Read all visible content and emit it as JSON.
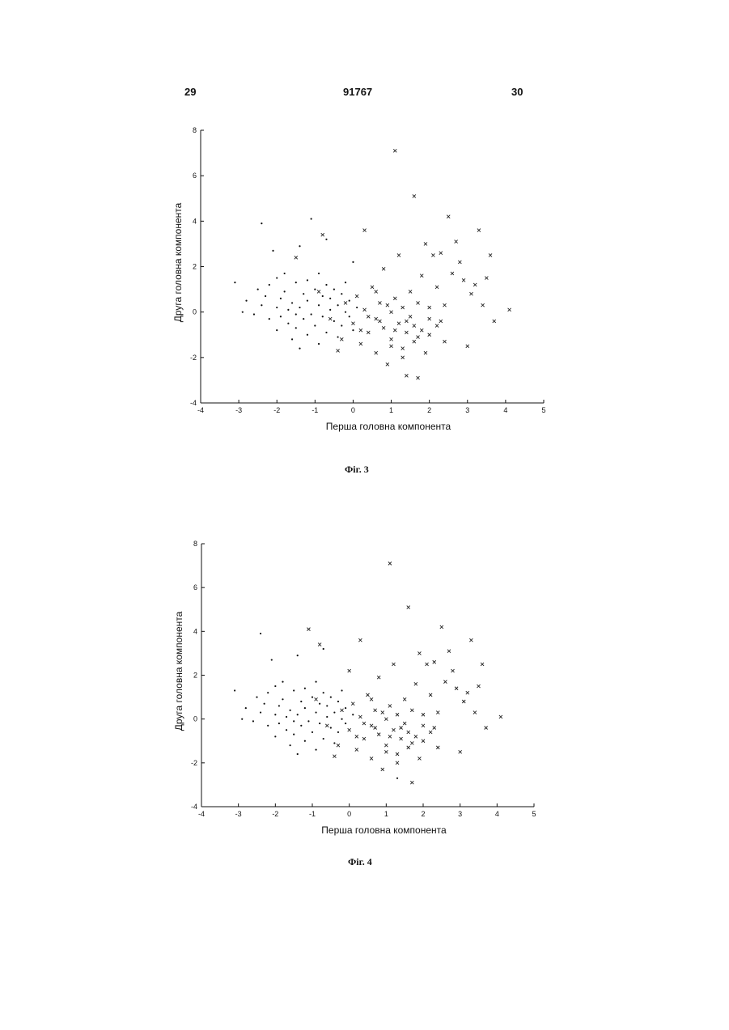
{
  "header": {
    "page_left": "29",
    "patent_number": "91767",
    "page_right": "30"
  },
  "chart_data": [
    {
      "type": "scatter",
      "caption": "Фіг. 3",
      "xlabel": "Перша головна компонента",
      "ylabel": "Друга головна компонента",
      "xlim": [
        -4,
        5
      ],
      "ylim": [
        -4,
        8
      ],
      "x_ticks": [
        -4,
        -3,
        -2,
        -1,
        0,
        1,
        2,
        3,
        4,
        5
      ],
      "y_ticks": [
        -4,
        -2,
        0,
        2,
        4,
        6,
        8
      ],
      "grid": false,
      "series": [
        {
          "marker": "dot",
          "points": [
            [
              -3.1,
              1.3
            ],
            [
              -2.9,
              0.0
            ],
            [
              -2.8,
              0.5
            ],
            [
              -2.6,
              -0.1
            ],
            [
              -2.5,
              1.0
            ],
            [
              -2.4,
              3.9
            ],
            [
              -2.4,
              0.3
            ],
            [
              -2.3,
              0.7
            ],
            [
              -2.2,
              -0.3
            ],
            [
              -2.2,
              1.2
            ],
            [
              -2.1,
              2.7
            ],
            [
              -2.0,
              0.2
            ],
            [
              -2.0,
              -0.8
            ],
            [
              -1.9,
              0.6
            ],
            [
              -1.9,
              -0.2
            ],
            [
              -1.8,
              1.7
            ],
            [
              -1.8,
              0.9
            ],
            [
              -1.7,
              -0.5
            ],
            [
              -1.7,
              0.1
            ],
            [
              -1.6,
              0.4
            ],
            [
              -1.6,
              -1.2
            ],
            [
              -1.5,
              1.3
            ],
            [
              -1.5,
              -0.7
            ],
            [
              -1.4,
              2.9
            ],
            [
              -1.4,
              0.2
            ],
            [
              -1.4,
              -1.6
            ],
            [
              -1.3,
              0.8
            ],
            [
              -1.3,
              -0.3
            ],
            [
              -1.2,
              1.4
            ],
            [
              -1.2,
              0.5
            ],
            [
              -1.2,
              -1.0
            ],
            [
              -1.1,
              4.1
            ],
            [
              -1.1,
              -0.1
            ],
            [
              -1.0,
              1.0
            ],
            [
              -1.0,
              -0.6
            ],
            [
              -0.9,
              0.3
            ],
            [
              -0.9,
              1.7
            ],
            [
              -0.9,
              -1.4
            ],
            [
              -0.8,
              0.7
            ],
            [
              -0.8,
              -0.2
            ],
            [
              -0.7,
              3.2
            ],
            [
              -0.7,
              1.2
            ],
            [
              -0.7,
              -0.9
            ],
            [
              -0.6,
              0.1
            ],
            [
              -0.6,
              0.6
            ],
            [
              -0.5,
              -0.4
            ],
            [
              -0.5,
              1.0
            ],
            [
              -0.4,
              -1.1
            ],
            [
              -0.4,
              0.3
            ],
            [
              -0.3,
              0.8
            ],
            [
              -0.3,
              -0.6
            ],
            [
              -0.2,
              0.0
            ],
            [
              -0.2,
              1.3
            ],
            [
              -0.1,
              -0.2
            ],
            [
              -0.1,
              0.5
            ],
            [
              0.0,
              2.2
            ],
            [
              0.0,
              -0.8
            ],
            [
              0.1,
              0.2
            ],
            [
              -1.5,
              -0.1
            ],
            [
              -2.0,
              1.5
            ]
          ]
        },
        {
          "marker": "cross",
          "points": [
            [
              -0.8,
              3.4
            ],
            [
              -1.5,
              2.4
            ],
            [
              -0.9,
              0.9
            ],
            [
              -0.6,
              -0.3
            ],
            [
              -0.4,
              -1.7
            ],
            [
              -0.2,
              0.4
            ],
            [
              0.0,
              -0.5
            ],
            [
              0.1,
              0.7
            ],
            [
              0.2,
              -1.4
            ],
            [
              0.3,
              3.6
            ],
            [
              0.3,
              0.1
            ],
            [
              0.4,
              -0.9
            ],
            [
              0.5,
              1.1
            ],
            [
              0.6,
              -0.3
            ],
            [
              0.6,
              -1.8
            ],
            [
              0.7,
              0.4
            ],
            [
              0.8,
              1.9
            ],
            [
              0.8,
              -0.7
            ],
            [
              0.9,
              -2.3
            ],
            [
              1.0,
              0.0
            ],
            [
              1.0,
              -1.2
            ],
            [
              1.1,
              7.1
            ],
            [
              1.1,
              0.6
            ],
            [
              1.2,
              -0.5
            ],
            [
              1.2,
              2.5
            ],
            [
              1.3,
              -1.6
            ],
            [
              1.3,
              0.2
            ],
            [
              1.4,
              -2.8
            ],
            [
              1.4,
              -0.9
            ],
            [
              1.5,
              0.9
            ],
            [
              1.5,
              -0.2
            ],
            [
              1.6,
              5.1
            ],
            [
              1.6,
              -1.3
            ],
            [
              1.7,
              -2.9
            ],
            [
              1.7,
              0.4
            ],
            [
              1.8,
              1.6
            ],
            [
              1.8,
              -0.8
            ],
            [
              1.9,
              -1.8
            ],
            [
              1.9,
              3.0
            ],
            [
              2.0,
              0.2
            ],
            [
              2.0,
              -1.0
            ],
            [
              2.1,
              2.5
            ],
            [
              2.2,
              1.1
            ],
            [
              2.2,
              -0.6
            ],
            [
              2.3,
              2.6
            ],
            [
              2.4,
              0.3
            ],
            [
              2.4,
              -1.3
            ],
            [
              2.5,
              4.2
            ],
            [
              2.6,
              1.7
            ],
            [
              2.7,
              3.1
            ],
            [
              2.8,
              2.2
            ],
            [
              2.9,
              1.4
            ],
            [
              3.0,
              -1.5
            ],
            [
              3.1,
              0.8
            ],
            [
              3.2,
              1.2
            ],
            [
              3.3,
              3.6
            ],
            [
              3.4,
              0.3
            ],
            [
              3.5,
              1.5
            ],
            [
              3.6,
              2.5
            ],
            [
              3.7,
              -0.4
            ],
            [
              4.1,
              0.1
            ],
            [
              0.4,
              -0.2
            ],
            [
              0.9,
              0.3
            ],
            [
              1.1,
              -0.8
            ],
            [
              1.4,
              -0.4
            ],
            [
              1.7,
              -1.1
            ],
            [
              2.0,
              -0.3
            ],
            [
              0.2,
              -0.8
            ],
            [
              0.6,
              0.9
            ],
            [
              1.0,
              -1.5
            ],
            [
              1.3,
              -2.0
            ],
            [
              0.7,
              -0.4
            ],
            [
              1.6,
              -0.6
            ],
            [
              2.3,
              -0.4
            ],
            [
              -0.3,
              -1.2
            ]
          ]
        }
      ]
    },
    {
      "type": "scatter",
      "caption": "Фіг. 4",
      "xlabel": "Перша головна компонента",
      "ylabel": "Друга головна компонента",
      "xlim": [
        -4,
        5
      ],
      "ylim": [
        -4,
        8
      ],
      "x_ticks": [
        -4,
        -3,
        -2,
        -1,
        0,
        1,
        2,
        3,
        4,
        5
      ],
      "y_ticks": [
        -4,
        -2,
        0,
        2,
        4,
        6,
        8
      ],
      "grid": false,
      "series": [
        {
          "marker": "dot",
          "points": [
            [
              -3.1,
              1.3
            ],
            [
              -2.9,
              0.0
            ],
            [
              -2.8,
              0.5
            ],
            [
              -2.6,
              -0.1
            ],
            [
              -2.5,
              1.0
            ],
            [
              -2.4,
              3.9
            ],
            [
              -2.4,
              0.3
            ],
            [
              -2.3,
              0.7
            ],
            [
              -2.2,
              -0.3
            ],
            [
              -2.2,
              1.2
            ],
            [
              -2.1,
              2.7
            ],
            [
              -2.0,
              0.2
            ],
            [
              -2.0,
              -0.8
            ],
            [
              -1.9,
              0.6
            ],
            [
              -1.9,
              -0.2
            ],
            [
              -1.8,
              1.7
            ],
            [
              -1.8,
              0.9
            ],
            [
              -1.7,
              -0.5
            ],
            [
              -1.7,
              0.1
            ],
            [
              -1.6,
              0.4
            ],
            [
              -1.6,
              -1.2
            ],
            [
              -1.5,
              1.3
            ],
            [
              -1.5,
              -0.7
            ],
            [
              -1.4,
              2.9
            ],
            [
              -1.4,
              0.2
            ],
            [
              -1.4,
              -1.6
            ],
            [
              -1.3,
              0.8
            ],
            [
              -1.3,
              -0.3
            ],
            [
              -1.2,
              1.4
            ],
            [
              -1.2,
              0.5
            ],
            [
              -1.2,
              -1.0
            ],
            [
              -1.1,
              -0.1
            ],
            [
              -1.0,
              1.0
            ],
            [
              -1.0,
              -0.6
            ],
            [
              -0.9,
              0.3
            ],
            [
              -0.9,
              1.7
            ],
            [
              -0.9,
              -1.4
            ],
            [
              -0.8,
              0.7
            ],
            [
              -0.8,
              -0.2
            ],
            [
              -0.7,
              3.2
            ],
            [
              -0.7,
              1.2
            ],
            [
              -0.7,
              -0.9
            ],
            [
              -0.6,
              0.1
            ],
            [
              -0.6,
              0.6
            ],
            [
              -0.5,
              -0.4
            ],
            [
              -0.5,
              1.0
            ],
            [
              -0.4,
              -1.1
            ],
            [
              -0.4,
              0.3
            ],
            [
              -0.3,
              0.8
            ],
            [
              -0.3,
              -0.6
            ],
            [
              -0.2,
              0.0
            ],
            [
              -0.2,
              1.3
            ],
            [
              -0.1,
              -0.2
            ],
            [
              -0.1,
              0.5
            ],
            [
              0.1,
              0.2
            ],
            [
              1.3,
              -2.7
            ],
            [
              -1.5,
              -0.1
            ],
            [
              -2.0,
              1.5
            ]
          ]
        },
        {
          "marker": "cross",
          "points": [
            [
              -0.8,
              3.4
            ],
            [
              -1.1,
              4.1
            ],
            [
              -0.9,
              0.9
            ],
            [
              -0.6,
              -0.3
            ],
            [
              -0.4,
              -1.7
            ],
            [
              -0.2,
              0.4
            ],
            [
              0.0,
              2.2
            ],
            [
              0.0,
              -0.5
            ],
            [
              0.1,
              0.7
            ],
            [
              0.2,
              -1.4
            ],
            [
              0.3,
              3.6
            ],
            [
              0.3,
              0.1
            ],
            [
              0.4,
              -0.9
            ],
            [
              0.5,
              1.1
            ],
            [
              0.6,
              -0.3
            ],
            [
              0.6,
              -1.8
            ],
            [
              0.7,
              0.4
            ],
            [
              0.8,
              1.9
            ],
            [
              0.8,
              -0.7
            ],
            [
              0.9,
              -2.3
            ],
            [
              1.0,
              0.0
            ],
            [
              1.0,
              -1.2
            ],
            [
              1.1,
              7.1
            ],
            [
              1.1,
              0.6
            ],
            [
              1.2,
              -0.5
            ],
            [
              1.2,
              2.5
            ],
            [
              1.3,
              -1.6
            ],
            [
              1.3,
              0.2
            ],
            [
              1.4,
              -0.9
            ],
            [
              1.5,
              0.9
            ],
            [
              1.5,
              -0.2
            ],
            [
              1.6,
              5.1
            ],
            [
              1.6,
              -1.3
            ],
            [
              1.7,
              -2.9
            ],
            [
              1.7,
              0.4
            ],
            [
              1.8,
              1.6
            ],
            [
              1.8,
              -0.8
            ],
            [
              1.9,
              -1.8
            ],
            [
              1.9,
              3.0
            ],
            [
              2.0,
              0.2
            ],
            [
              2.0,
              -1.0
            ],
            [
              2.1,
              2.5
            ],
            [
              2.2,
              1.1
            ],
            [
              2.2,
              -0.6
            ],
            [
              2.3,
              2.6
            ],
            [
              2.4,
              0.3
            ],
            [
              2.4,
              -1.3
            ],
            [
              2.5,
              4.2
            ],
            [
              2.6,
              1.7
            ],
            [
              2.7,
              3.1
            ],
            [
              2.8,
              2.2
            ],
            [
              2.9,
              1.4
            ],
            [
              3.0,
              -1.5
            ],
            [
              3.1,
              0.8
            ],
            [
              3.2,
              1.2
            ],
            [
              3.3,
              3.6
            ],
            [
              3.4,
              0.3
            ],
            [
              3.5,
              1.5
            ],
            [
              3.6,
              2.5
            ],
            [
              3.7,
              -0.4
            ],
            [
              4.1,
              0.1
            ],
            [
              0.4,
              -0.2
            ],
            [
              0.9,
              0.3
            ],
            [
              1.1,
              -0.8
            ],
            [
              1.4,
              -0.4
            ],
            [
              1.7,
              -1.1
            ],
            [
              2.0,
              -0.3
            ],
            [
              0.2,
              -0.8
            ],
            [
              0.6,
              0.9
            ],
            [
              1.0,
              -1.5
            ],
            [
              1.3,
              -2.0
            ],
            [
              0.7,
              -0.4
            ],
            [
              1.6,
              -0.6
            ],
            [
              2.3,
              -0.4
            ],
            [
              -0.3,
              -1.2
            ]
          ]
        }
      ]
    }
  ]
}
